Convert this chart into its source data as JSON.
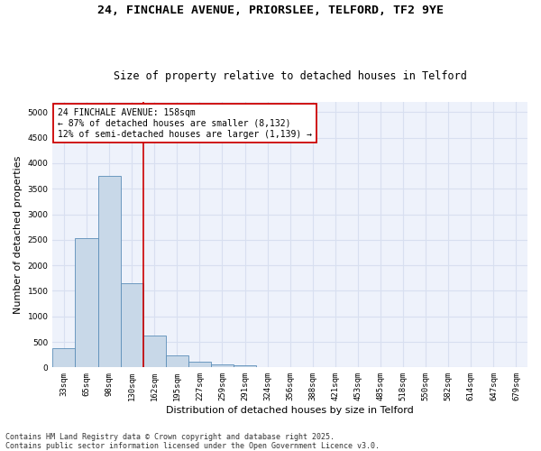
{
  "title1": "24, FINCHALE AVENUE, PRIORSLEE, TELFORD, TF2 9YE",
  "title2": "Size of property relative to detached houses in Telford",
  "xlabel": "Distribution of detached houses by size in Telford",
  "ylabel": "Number of detached properties",
  "categories": [
    "33sqm",
    "65sqm",
    "98sqm",
    "130sqm",
    "162sqm",
    "195sqm",
    "227sqm",
    "259sqm",
    "291sqm",
    "324sqm",
    "356sqm",
    "388sqm",
    "421sqm",
    "453sqm",
    "485sqm",
    "518sqm",
    "550sqm",
    "582sqm",
    "614sqm",
    "647sqm",
    "679sqm"
  ],
  "values": [
    380,
    2530,
    3750,
    1650,
    620,
    230,
    110,
    60,
    35,
    10,
    5,
    2,
    1,
    0,
    0,
    0,
    0,
    0,
    0,
    0,
    0
  ],
  "bar_color": "#c8d8e8",
  "bar_edge_color": "#5b8db8",
  "annotation_box_text": "24 FINCHALE AVENUE: 158sqm\n← 87% of detached houses are smaller (8,132)\n12% of semi-detached houses are larger (1,139) →",
  "vline_color": "#cc0000",
  "annotation_box_edge_color": "#cc0000",
  "footer": "Contains HM Land Registry data © Crown copyright and database right 2025.\nContains public sector information licensed under the Open Government Licence v3.0.",
  "ylim": [
    0,
    5200
  ],
  "yticks": [
    0,
    500,
    1000,
    1500,
    2000,
    2500,
    3000,
    3500,
    4000,
    4500,
    5000
  ],
  "grid_color": "#d8dff0",
  "bg_color": "#eef2fb",
  "title_fontsize": 9.5,
  "subtitle_fontsize": 8.5,
  "tick_fontsize": 6.5,
  "ylabel_fontsize": 8,
  "xlabel_fontsize": 8,
  "footer_fontsize": 6,
  "annotation_fontsize": 7,
  "vline_index": 4
}
